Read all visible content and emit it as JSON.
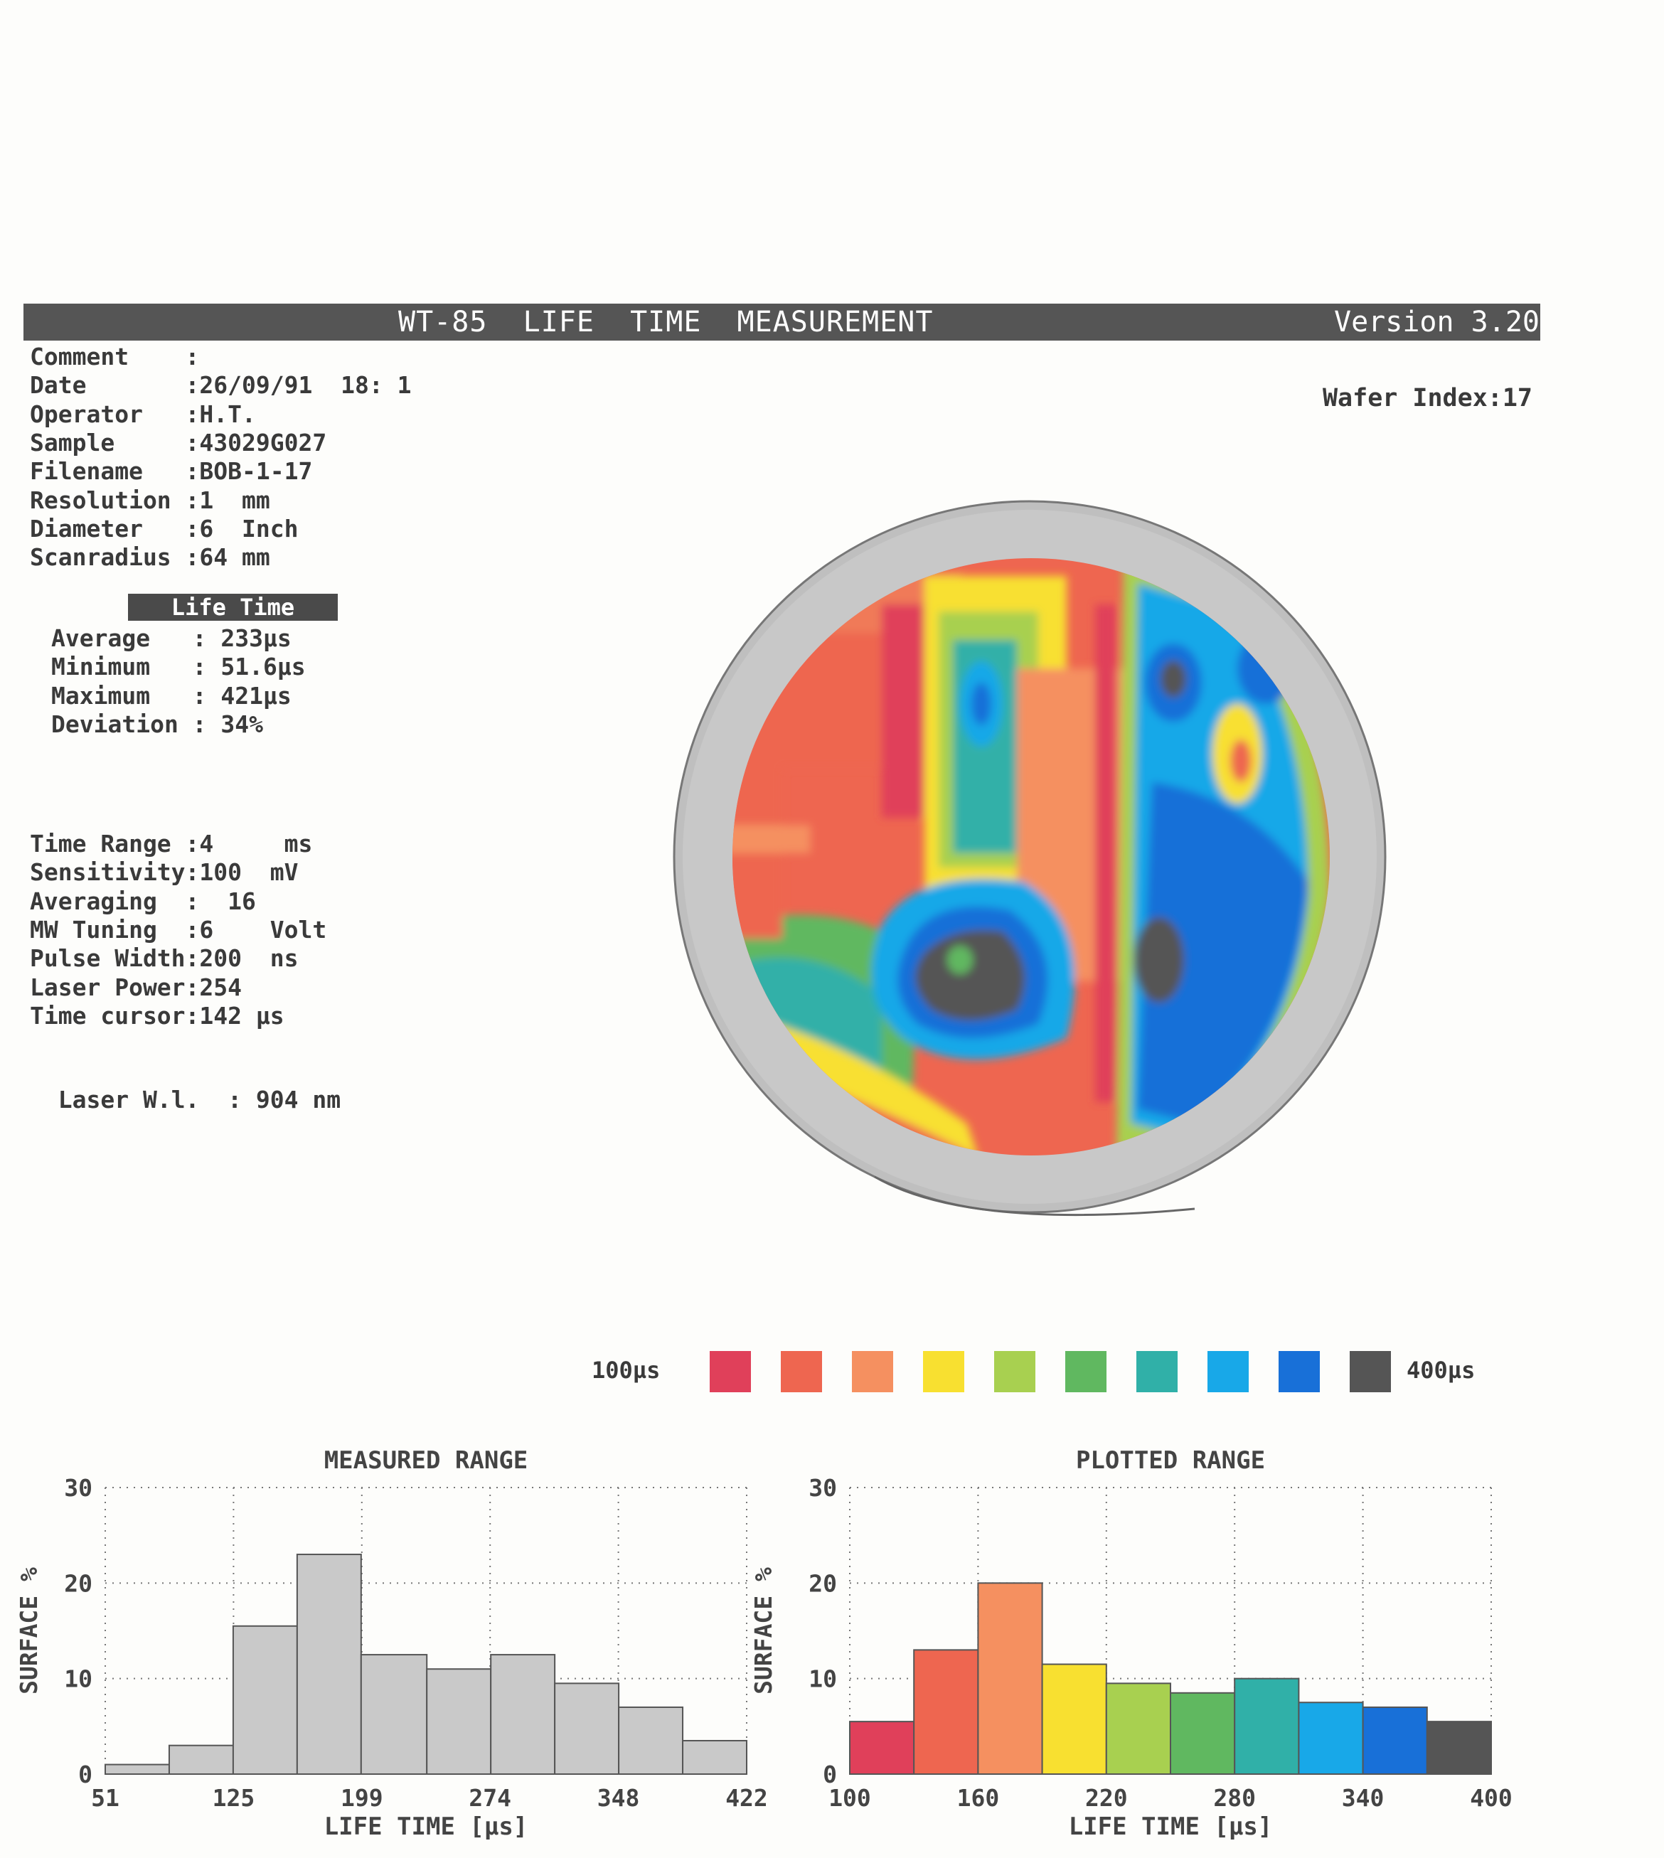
{
  "header": {
    "title": "WT-85  LIFE  TIME  MEASUREMENT",
    "version": "Version 3.20"
  },
  "meta": [
    {
      "label": "Comment    ",
      "value": ""
    },
    {
      "label": "Date       ",
      "value": "26/09/91  18: 1"
    },
    {
      "label": "Operator   ",
      "value": "H.T."
    },
    {
      "label": "Sample     ",
      "value": "43029G027"
    },
    {
      "label": "Filename   ",
      "value": "BOB-1-17"
    },
    {
      "label": "Resolution ",
      "value": "1  mm"
    },
    {
      "label": "Diameter   ",
      "value": "6  Inch"
    },
    {
      "label": "Scanradius ",
      "value": "64 mm"
    }
  ],
  "wafer_index": "Wafer Index:17",
  "lifetime": {
    "title": "Life Time",
    "rows": [
      {
        "label": "Average  ",
        "value": "233µs"
      },
      {
        "label": "Minimum  ",
        "value": "51.6µs"
      },
      {
        "label": "Maximum  ",
        "value": "421µs"
      },
      {
        "label": "Deviation",
        "value": "34%"
      }
    ]
  },
  "settings": [
    {
      "label": "Time Range ",
      "value": "4     ms"
    },
    {
      "label": "Sensitivity",
      "value": "100  mV"
    },
    {
      "label": "Averaging  ",
      "value": "  16"
    },
    {
      "label": "MW Tuning  ",
      "value": "6    Volt"
    },
    {
      "label": "Pulse Width",
      "value": "200  ns"
    },
    {
      "label": "Laser Power",
      "value": "254"
    },
    {
      "label": "Time cursor",
      "value": "142 µs"
    }
  ],
  "laser_wl": {
    "label": "Laser W.l. ",
    "value": "904 nm"
  },
  "legend": {
    "min_label": "100µs",
    "max_label": "400µs",
    "colors": [
      "#e0405a",
      "#ee6650",
      "#f59060",
      "#f8e030",
      "#a8d050",
      "#60b860",
      "#30b0a8",
      "#18a8e8",
      "#1870d8",
      "#555555"
    ]
  },
  "chart_data": [
    {
      "type": "bar",
      "title": "MEASURED RANGE",
      "xlabel": "LIFE TIME [µs]",
      "ylabel": "SURFACE %",
      "x_ticks": [
        "51",
        "125",
        "199",
        "274",
        "348",
        "422"
      ],
      "y_ticks": [
        "0",
        "10",
        "20",
        "30"
      ],
      "ylim": [
        0,
        30
      ],
      "bin_edges": [
        51,
        88,
        125,
        162,
        199,
        237,
        274,
        311,
        348,
        385,
        422
      ],
      "values": [
        1,
        3,
        15.5,
        23,
        12.5,
        11,
        12.5,
        9.5,
        7,
        3.5
      ],
      "bar_color": "#c9c9c9",
      "grid": true
    },
    {
      "type": "bar",
      "title": "PLOTTED RANGE",
      "xlabel": "LIFE TIME [µs]",
      "ylabel": "SURFACE %",
      "x_ticks": [
        "100",
        "160",
        "220",
        "280",
        "340",
        "400"
      ],
      "y_ticks": [
        "0",
        "10",
        "20",
        "30"
      ],
      "ylim": [
        0,
        30
      ],
      "bin_edges": [
        100,
        130,
        160,
        190,
        220,
        250,
        280,
        310,
        340,
        370,
        400
      ],
      "values": [
        5.5,
        13,
        20,
        11.5,
        9.5,
        8.5,
        10,
        7.5,
        7,
        5.5
      ],
      "bar_colors": [
        "#e0405a",
        "#ee6650",
        "#f59060",
        "#f8e030",
        "#a8d050",
        "#60b860",
        "#30b0a8",
        "#18a8e8",
        "#1870d8",
        "#555555"
      ],
      "grid": true
    }
  ]
}
